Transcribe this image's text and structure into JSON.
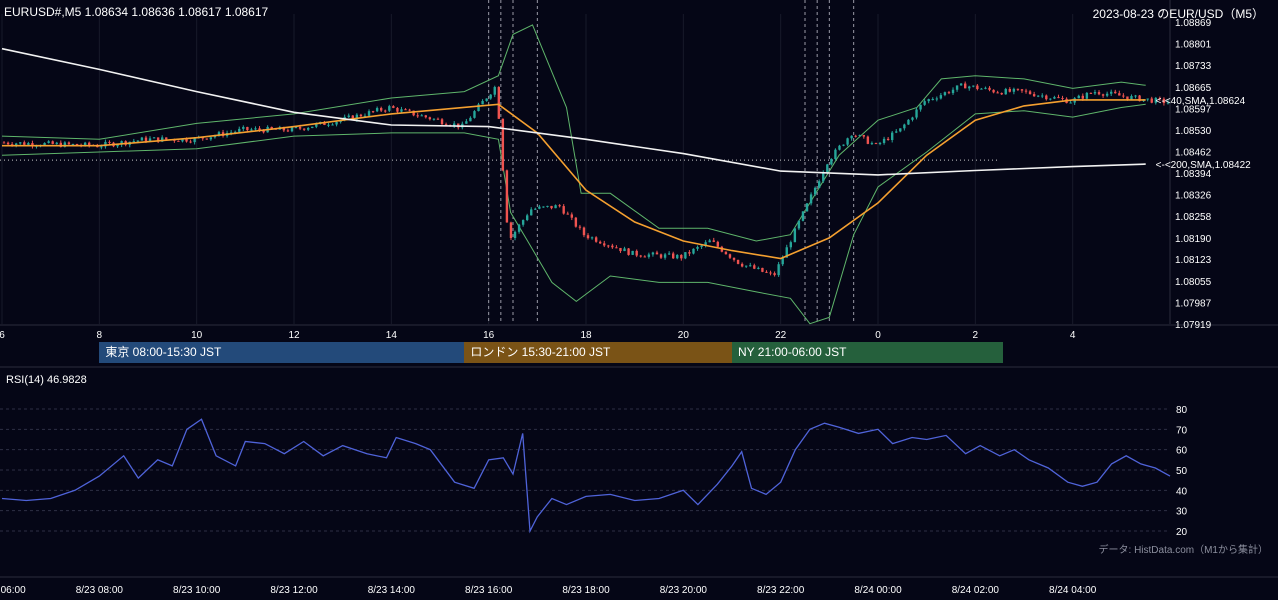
{
  "header": {
    "symbol_info": "EURUSD#,M5 1.08634 1.08636 1.08617 1.08617",
    "title": "2023-08-23 のEUR/USD（M5）"
  },
  "sessions": [
    {
      "label": "東京 08:00-15:30 JST",
      "color": "#234a7a",
      "start": 8.0,
      "end": 15.5
    },
    {
      "label": "ロンドン 15:30-21:00 JST",
      "color": "#7a5316",
      "start": 15.5,
      "end": 21.0
    },
    {
      "label": "NY 21:00-06:00 JST",
      "color": "#25603c",
      "start": 21.0,
      "end": 30.0
    }
  ],
  "rsi": {
    "label": "RSI(14) 46.9828"
  },
  "credit": "データ: HistData.com（M1から集計）",
  "colors": {
    "background": "#050616",
    "candle_up": "#26a69a",
    "candle_down": "#ef5350",
    "sma40": "#f5a030",
    "sma200": "#f2f2f2",
    "bollinger": "#5fb56b",
    "rsi": "#4f63d9"
  },
  "chart_data": [
    {
      "type": "candlestick",
      "title": "EUR/USD M5",
      "x_range_hours_jst": [
        6,
        30
      ],
      "ylim": [
        1.07919,
        1.08869
      ],
      "y_ticks": [
        "1.08869",
        "1.08801",
        "1.08733",
        "1.08665",
        "1.08597",
        "1.08530",
        "1.08462",
        "1.08394",
        "1.08326",
        "1.08258",
        "1.08190",
        "1.08123",
        "1.08055",
        "1.07987",
        "1.07919"
      ],
      "x_tick_labels": [
        "6",
        "8",
        "10",
        "12",
        "14",
        "16",
        "18",
        "20",
        "22",
        "0",
        "2",
        "4"
      ],
      "x_ticks_hours": [
        6,
        8,
        10,
        12,
        14,
        16,
        18,
        20,
        22,
        24,
        26,
        28
      ],
      "event_lines_hours": [
        16.0,
        16.25,
        16.5,
        17.0,
        22.5,
        22.75,
        23.0,
        23.5
      ],
      "price_path": [
        [
          6.0,
          1.0849
        ],
        [
          8.0,
          1.0848
        ],
        [
          9.0,
          1.085
        ],
        [
          10.0,
          1.085
        ],
        [
          11.0,
          1.0853
        ],
        [
          12.0,
          1.0853
        ],
        [
          13.0,
          1.0856
        ],
        [
          14.0,
          1.086
        ],
        [
          15.5,
          1.0854
        ],
        [
          16.2,
          1.0867
        ],
        [
          16.45,
          1.0818
        ],
        [
          16.9,
          1.0828
        ],
        [
          17.5,
          1.0829
        ],
        [
          18.0,
          1.082
        ],
        [
          19.0,
          1.0814
        ],
        [
          20.0,
          1.0813
        ],
        [
          20.6,
          1.0818
        ],
        [
          21.2,
          1.0811
        ],
        [
          21.9,
          1.0807
        ],
        [
          22.3,
          1.082
        ],
        [
          23.0,
          1.0843
        ],
        [
          23.5,
          1.0852
        ],
        [
          24.0,
          1.0848
        ],
        [
          24.5,
          1.0853
        ],
        [
          25.0,
          1.0862
        ],
        [
          25.8,
          1.0867
        ],
        [
          26.5,
          1.0865
        ],
        [
          27.0,
          1.0865
        ],
        [
          28.0,
          1.0862
        ],
        [
          28.5,
          1.0865
        ],
        [
          29.3,
          1.0863
        ],
        [
          30.0,
          1.08617
        ]
      ],
      "series": [
        {
          "name": "<-<40,SMA,1.08624",
          "points": [
            [
              6.0,
              1.0848
            ],
            [
              8.0,
              1.0848
            ],
            [
              10.0,
              1.08505
            ],
            [
              12.0,
              1.0854
            ],
            [
              14.0,
              1.0858
            ],
            [
              16.2,
              1.0861
            ],
            [
              17.0,
              1.0852
            ],
            [
              18.0,
              1.0834
            ],
            [
              19.0,
              1.0824
            ],
            [
              20.0,
              1.0818
            ],
            [
              21.0,
              1.0815
            ],
            [
              22.0,
              1.08125
            ],
            [
              23.0,
              1.0819
            ],
            [
              24.0,
              1.083
            ],
            [
              25.0,
              1.0845
            ],
            [
              26.0,
              1.0856
            ],
            [
              27.0,
              1.08605
            ],
            [
              28.0,
              1.08624
            ],
            [
              29.5,
              1.08624
            ]
          ]
        },
        {
          "name": "<-<200,SMA,1.08422",
          "points": [
            [
              6.0,
              1.08785
            ],
            [
              8.0,
              1.0872
            ],
            [
              10.0,
              1.0865
            ],
            [
              12.0,
              1.08585
            ],
            [
              14.0,
              1.08545
            ],
            [
              16.0,
              1.0854
            ],
            [
              18.0,
              1.085
            ],
            [
              20.0,
              1.08455
            ],
            [
              22.0,
              1.084
            ],
            [
              24.0,
              1.08388
            ],
            [
              26.0,
              1.08402
            ],
            [
              28.0,
              1.08414
            ],
            [
              29.5,
              1.08422
            ]
          ]
        }
      ],
      "bollinger_upper": [
        [
          6.0,
          1.0851
        ],
        [
          8.0,
          1.085
        ],
        [
          10.0,
          1.0855
        ],
        [
          12.0,
          1.0858
        ],
        [
          14.0,
          1.0863
        ],
        [
          15.5,
          1.0865
        ],
        [
          16.2,
          1.087
        ],
        [
          16.5,
          1.0883
        ],
        [
          16.9,
          1.0886
        ],
        [
          17.6,
          1.086
        ],
        [
          17.9,
          1.0833
        ],
        [
          18.5,
          1.0833
        ],
        [
          19.5,
          1.0822
        ],
        [
          20.5,
          1.0822
        ],
        [
          21.5,
          1.0818
        ],
        [
          22.2,
          1.082
        ],
        [
          22.6,
          1.083
        ],
        [
          23.2,
          1.0845
        ],
        [
          24.0,
          1.0856
        ],
        [
          24.8,
          1.086
        ],
        [
          25.3,
          1.0869
        ],
        [
          26.0,
          1.087
        ],
        [
          27.0,
          1.0869
        ],
        [
          28.0,
          1.0866
        ],
        [
          29.0,
          1.0868
        ],
        [
          29.5,
          1.0867
        ]
      ],
      "bollinger_lower": [
        [
          6.0,
          1.0845
        ],
        [
          8.0,
          1.0846
        ],
        [
          10.0,
          1.0847
        ],
        [
          12.0,
          1.0851
        ],
        [
          14.0,
          1.0852
        ],
        [
          15.5,
          1.0852
        ],
        [
          16.2,
          1.085
        ],
        [
          16.45,
          1.0827
        ],
        [
          16.8,
          1.0818
        ],
        [
          17.3,
          1.0805
        ],
        [
          17.8,
          1.0799
        ],
        [
          18.5,
          1.0807
        ],
        [
          19.5,
          1.0805
        ],
        [
          20.5,
          1.0805
        ],
        [
          21.5,
          1.0802
        ],
        [
          22.2,
          1.08
        ],
        [
          22.6,
          1.0792
        ],
        [
          23.0,
          1.0794
        ],
        [
          23.5,
          1.082
        ],
        [
          24.0,
          1.0835
        ],
        [
          25.0,
          1.0846
        ],
        [
          26.0,
          1.0858
        ],
        [
          27.0,
          1.0859
        ],
        [
          28.0,
          1.0857
        ],
        [
          29.0,
          1.086
        ],
        [
          29.5,
          1.0861
        ]
      ]
    },
    {
      "type": "line",
      "title": "RSI(14) 46.9828",
      "ylim": [
        20,
        80
      ],
      "y_ticks": [
        "80",
        "70",
        "60",
        "50",
        "40",
        "30",
        "20"
      ],
      "x_range_hours_jst": [
        6,
        30
      ],
      "x_tick_labels": [
        "8/23 06:00",
        "8/23 08:00",
        "8/23 10:00",
        "8/23 12:00",
        "8/23 14:00",
        "8/23 16:00",
        "8/23 18:00",
        "8/23 20:00",
        "8/23 22:00",
        "8/24 00:00",
        "8/24 02:00",
        "8/24 04:00"
      ],
      "x_ticks_hours": [
        6,
        8,
        10,
        12,
        14,
        16,
        18,
        20,
        22,
        24,
        26,
        28
      ],
      "series": [
        {
          "name": "RSI(14)",
          "points": [
            [
              6.0,
              36
            ],
            [
              6.5,
              35
            ],
            [
              7.0,
              36
            ],
            [
              7.5,
              40
            ],
            [
              8.0,
              47
            ],
            [
              8.5,
              57
            ],
            [
              8.8,
              46
            ],
            [
              9.2,
              55
            ],
            [
              9.5,
              52
            ],
            [
              9.8,
              70
            ],
            [
              10.1,
              75
            ],
            [
              10.4,
              57
            ],
            [
              10.8,
              52
            ],
            [
              11.0,
              64
            ],
            [
              11.4,
              63
            ],
            [
              11.8,
              58
            ],
            [
              12.2,
              64
            ],
            [
              12.6,
              57
            ],
            [
              13.0,
              62
            ],
            [
              13.5,
              58
            ],
            [
              13.9,
              56
            ],
            [
              14.1,
              66
            ],
            [
              14.5,
              63
            ],
            [
              14.8,
              60
            ],
            [
              15.3,
              44
            ],
            [
              15.7,
              41
            ],
            [
              16.0,
              55
            ],
            [
              16.3,
              56
            ],
            [
              16.5,
              48
            ],
            [
              16.7,
              68
            ],
            [
              16.85,
              20
            ],
            [
              17.0,
              27
            ],
            [
              17.3,
              36
            ],
            [
              17.6,
              33
            ],
            [
              18.0,
              37
            ],
            [
              18.5,
              38
            ],
            [
              19.0,
              35
            ],
            [
              19.5,
              36
            ],
            [
              20.0,
              40
            ],
            [
              20.3,
              33
            ],
            [
              20.7,
              43
            ],
            [
              21.0,
              52
            ],
            [
              21.2,
              59
            ],
            [
              21.4,
              41
            ],
            [
              21.7,
              38
            ],
            [
              22.0,
              44
            ],
            [
              22.3,
              60
            ],
            [
              22.6,
              70
            ],
            [
              22.9,
              73
            ],
            [
              23.2,
              71
            ],
            [
              23.6,
              68
            ],
            [
              24.0,
              70
            ],
            [
              24.3,
              63
            ],
            [
              24.7,
              66
            ],
            [
              25.0,
              65
            ],
            [
              25.4,
              67
            ],
            [
              25.8,
              58
            ],
            [
              26.1,
              62
            ],
            [
              26.5,
              57
            ],
            [
              26.8,
              60
            ],
            [
              27.1,
              55
            ],
            [
              27.5,
              51
            ],
            [
              27.9,
              44
            ],
            [
              28.2,
              42
            ],
            [
              28.5,
              44
            ],
            [
              28.8,
              53
            ],
            [
              29.1,
              57
            ],
            [
              29.4,
              53
            ],
            [
              29.7,
              51
            ],
            [
              30.0,
              47
            ]
          ]
        }
      ]
    }
  ]
}
